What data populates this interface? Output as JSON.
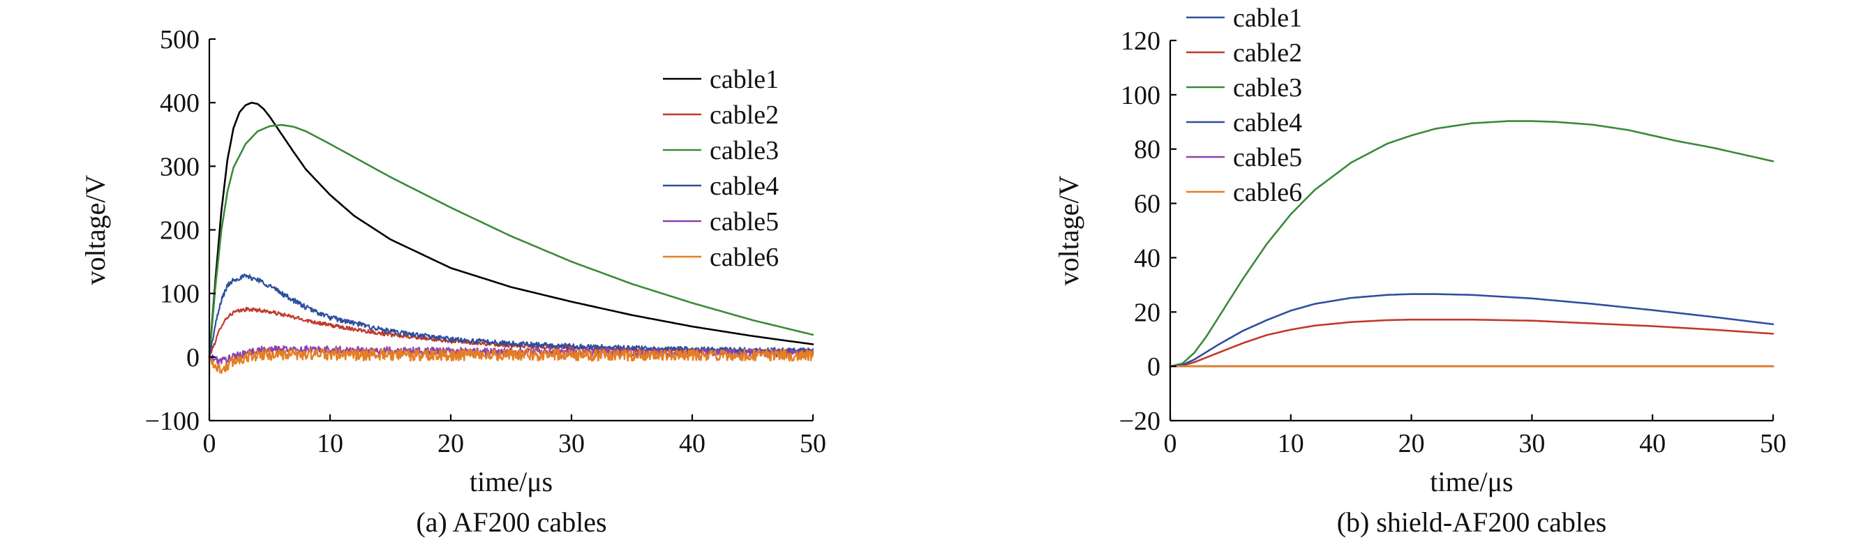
{
  "chart_data": [
    {
      "type": "line",
      "caption": "(a) AF200 cables",
      "xlabel": "time/μs",
      "ylabel": "voltage/V",
      "xlim": [
        0,
        50
      ],
      "ylim": [
        -100,
        500
      ],
      "xticks": [
        0,
        10,
        20,
        30,
        40,
        50
      ],
      "yticks": [
        -100,
        0,
        100,
        200,
        300,
        400,
        500
      ],
      "ytick_labels": [
        "−100",
        "0",
        "100",
        "200",
        "300",
        "400",
        "500"
      ],
      "legend_position": "top-right",
      "series": [
        {
          "name": "cable1",
          "color": "#000000",
          "noise": 0,
          "x": [
            0,
            0.5,
            1,
            1.5,
            2,
            2.5,
            3,
            3.5,
            4,
            4.5,
            5,
            6,
            7,
            8,
            10,
            12,
            15,
            20,
            25,
            30,
            35,
            40,
            45,
            50
          ],
          "y": [
            0,
            120,
            230,
            310,
            360,
            385,
            396,
            400,
            398,
            390,
            378,
            350,
            322,
            295,
            255,
            222,
            185,
            140,
            110,
            87,
            66,
            48,
            33,
            20
          ]
        },
        {
          "name": "cable2",
          "color": "#c0392b",
          "noise": 3,
          "x": [
            0,
            0.5,
            1,
            1.5,
            2,
            3,
            4,
            5,
            6,
            8,
            10,
            15,
            20,
            25,
            30,
            35,
            40,
            45,
            50
          ],
          "y": [
            0,
            25,
            50,
            63,
            70,
            75,
            74,
            71,
            67,
            58,
            50,
            35,
            25,
            18,
            14,
            12,
            10,
            9,
            8
          ]
        },
        {
          "name": "cable3",
          "color": "#3a8a3a",
          "noise": 0,
          "x": [
            0,
            0.5,
            1,
            1.5,
            2,
            3,
            4,
            5,
            6,
            7,
            8,
            10,
            15,
            20,
            25,
            30,
            35,
            40,
            45,
            50
          ],
          "y": [
            0,
            110,
            200,
            260,
            298,
            335,
            355,
            363,
            365,
            362,
            355,
            335,
            283,
            235,
            190,
            150,
            115,
            85,
            58,
            35
          ]
        },
        {
          "name": "cable4",
          "color": "#2e4f9e",
          "noise": 4,
          "x": [
            0,
            0.5,
            1,
            1.5,
            2,
            3,
            4,
            5,
            6,
            8,
            10,
            15,
            20,
            25,
            30,
            35,
            40,
            45,
            50
          ],
          "y": [
            0,
            50,
            90,
            112,
            122,
            127,
            122,
            112,
            100,
            78,
            62,
            40,
            28,
            21,
            17,
            14,
            12,
            11,
            10
          ]
        },
        {
          "name": "cable5",
          "color": "#8e44ad",
          "noise": 6,
          "x": [
            0,
            0.5,
            1,
            2,
            3,
            4,
            5,
            7,
            10,
            15,
            20,
            30,
            40,
            50
          ],
          "y": [
            0,
            -4,
            -6,
            0,
            6,
            10,
            12,
            12,
            11,
            10,
            9,
            8,
            7,
            6
          ]
        },
        {
          "name": "cable6",
          "color": "#e67e22",
          "noise": 9,
          "x": [
            0,
            0.5,
            1,
            1.5,
            2,
            3,
            4,
            5,
            7,
            10,
            15,
            20,
            30,
            40,
            50
          ],
          "y": [
            0,
            -15,
            -20,
            -14,
            -6,
            0,
            3,
            4,
            4,
            4,
            3,
            3,
            3,
            3,
            3
          ]
        }
      ]
    },
    {
      "type": "line",
      "caption": "(b) shield-AF200 cables",
      "xlabel": "time/μs",
      "ylabel": "voltage/V",
      "xlim": [
        0,
        50
      ],
      "ylim": [
        -20,
        120
      ],
      "xticks": [
        0,
        10,
        20,
        30,
        40,
        50
      ],
      "yticks": [
        -20,
        0,
        20,
        40,
        60,
        80,
        100,
        120
      ],
      "ytick_labels": [
        "−20",
        "0",
        "20",
        "40",
        "60",
        "80",
        "100",
        "120"
      ],
      "legend_position": "top-left",
      "series": [
        {
          "name": "cable1",
          "color": "#2e4f9e",
          "noise": 0,
          "x": [
            0,
            10,
            20,
            30,
            40,
            50
          ],
          "y": [
            0,
            0,
            0,
            0,
            0,
            0
          ]
        },
        {
          "name": "cable2",
          "color": "#c0392b",
          "noise": 0,
          "x": [
            0,
            1,
            2,
            4,
            6,
            8,
            10,
            12,
            15,
            18,
            20,
            25,
            30,
            35,
            40,
            45,
            50
          ],
          "y": [
            0,
            0.3,
            1.5,
            5,
            8.5,
            11.5,
            13.5,
            15,
            16.3,
            17,
            17.2,
            17.2,
            16.8,
            15.8,
            14.8,
            13.5,
            12
          ]
        },
        {
          "name": "cable3",
          "color": "#3a8a3a",
          "noise": 0,
          "x": [
            0,
            1,
            2,
            3,
            4,
            6,
            8,
            10,
            12,
            15,
            18,
            20,
            22,
            25,
            28,
            30,
            32,
            35,
            38,
            40,
            42,
            45,
            48,
            50
          ],
          "y": [
            0,
            1,
            5,
            11,
            18,
            32,
            45,
            56,
            65,
            75,
            82,
            85,
            87.5,
            89.5,
            90.3,
            90.3,
            90,
            89,
            87,
            85,
            83,
            80.5,
            77.5,
            75.5
          ]
        },
        {
          "name": "cable4",
          "color": "#2e4f9e",
          "noise": 0,
          "x": [
            0,
            1,
            2,
            4,
            6,
            8,
            10,
            12,
            15,
            18,
            20,
            22,
            25,
            30,
            35,
            40,
            45,
            50
          ],
          "y": [
            0,
            0.5,
            2.5,
            8,
            13,
            17,
            20.5,
            23,
            25.2,
            26.3,
            26.6,
            26.6,
            26.3,
            25,
            23,
            20.7,
            18.2,
            15.5
          ]
        },
        {
          "name": "cable5",
          "color": "#8e44ad",
          "noise": 0,
          "x": [
            0,
            10,
            20,
            30,
            40,
            50
          ],
          "y": [
            0,
            0,
            0,
            0,
            0,
            0
          ]
        },
        {
          "name": "cable6",
          "color": "#e67e22",
          "noise": 0,
          "x": [
            0,
            10,
            20,
            30,
            40,
            50
          ],
          "y": [
            0,
            0,
            0,
            0,
            0,
            0
          ]
        }
      ]
    }
  ]
}
